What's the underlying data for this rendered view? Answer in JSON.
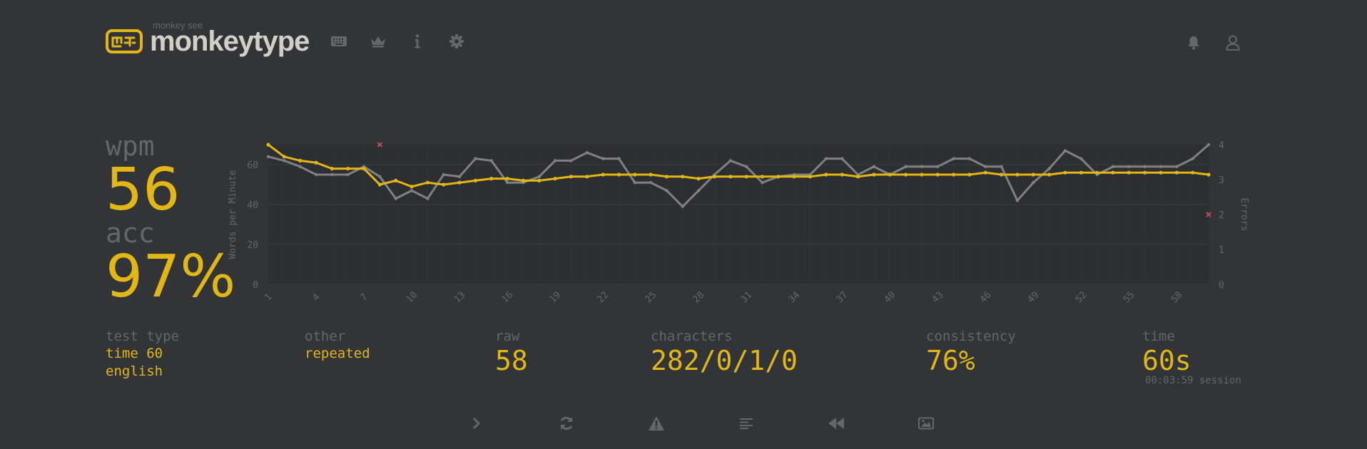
{
  "header": {
    "brand_sub": "monkey see",
    "brand_title": "monkeytype",
    "nav": [
      {
        "name": "keyboard-icon"
      },
      {
        "name": "crown-icon"
      },
      {
        "name": "info-icon"
      },
      {
        "name": "gear-icon"
      }
    ],
    "account": [
      {
        "name": "bell-icon"
      },
      {
        "name": "user-icon"
      }
    ]
  },
  "result": {
    "wpm_label": "wpm",
    "wpm": "56",
    "acc_label": "acc",
    "acc": "97%"
  },
  "details": {
    "test_type_label": "test type",
    "test_type_line1": "time 60",
    "test_type_line2": "english",
    "other_label": "other",
    "other_value": "repeated",
    "raw_label": "raw",
    "raw_value": "58",
    "characters_label": "characters",
    "characters_value": "282/0/1/0",
    "consistency_label": "consistency",
    "consistency_value": "76%",
    "time_label": "time",
    "time_value": "60s",
    "session": "00:03:59 session"
  },
  "bottom_buttons": [
    {
      "name": "next-test-icon"
    },
    {
      "name": "restart-test-icon"
    },
    {
      "name": "report-icon"
    },
    {
      "name": "word-history-icon"
    },
    {
      "name": "replay-icon"
    },
    {
      "name": "screenshot-icon"
    }
  ],
  "colors": {
    "background": "#323437",
    "main": "#e2b714",
    "sub": "#646669",
    "text": "#d1d0c5",
    "raw": "#808080",
    "error": "#ca4754"
  },
  "chart_data": {
    "type": "line",
    "ylabel": "Words per Minute",
    "y2label": "Errors",
    "ylim": [
      0,
      70
    ],
    "y2lim": [
      0,
      4
    ],
    "yticks": [
      "0",
      "20",
      "40",
      "60"
    ],
    "y2ticks": [
      "0",
      "1",
      "2",
      "3",
      "4"
    ],
    "xtick_labels": [
      "1",
      "4",
      "7",
      "10",
      "13",
      "16",
      "19",
      "22",
      "25",
      "28",
      "31",
      "34",
      "37",
      "40",
      "43",
      "46",
      "49",
      "52",
      "55",
      "58"
    ],
    "x": [
      1,
      2,
      3,
      4,
      5,
      6,
      7,
      8,
      9,
      10,
      11,
      12,
      13,
      14,
      15,
      16,
      17,
      18,
      19,
      20,
      21,
      22,
      23,
      24,
      25,
      26,
      27,
      28,
      29,
      30,
      31,
      32,
      33,
      34,
      35,
      36,
      37,
      38,
      39,
      40,
      41,
      42,
      43,
      44,
      45,
      46,
      47,
      48,
      49,
      50,
      51,
      52,
      53,
      54,
      55,
      56,
      57,
      58,
      59,
      60
    ],
    "series": [
      {
        "name": "wpm",
        "color": "#e2b714",
        "values": [
          70,
          64,
          62,
          61,
          58,
          58,
          58,
          50,
          52,
          49,
          51,
          50,
          51,
          52,
          53,
          53,
          52,
          52,
          53,
          54,
          54,
          55,
          55,
          55,
          55,
          54,
          54,
          53,
          54,
          54,
          54,
          54,
          54,
          54,
          54,
          55,
          55,
          54,
          55,
          55,
          55,
          55,
          55,
          55,
          55,
          56,
          55,
          55,
          55,
          55,
          56,
          56,
          56,
          56,
          56,
          56,
          56,
          56,
          56,
          55
        ]
      },
      {
        "name": "raw",
        "color": "#808080",
        "values": [
          64,
          62,
          59,
          55,
          55,
          55,
          59,
          54,
          43,
          47,
          43,
          55,
          54,
          63,
          62,
          51,
          51,
          54,
          62,
          62,
          66,
          63,
          63,
          51,
          51,
          47,
          39,
          47,
          55,
          62,
          59,
          51,
          54,
          55,
          55,
          63,
          63,
          55,
          59,
          55,
          59,
          59,
          59,
          63,
          63,
          59,
          59,
          42,
          51,
          58,
          67,
          63,
          55,
          59,
          59,
          59,
          59,
          59,
          63,
          70
        ]
      }
    ],
    "errors": [
      {
        "x": 8,
        "count": 4
      },
      {
        "x": 60,
        "count": 2
      }
    ]
  }
}
